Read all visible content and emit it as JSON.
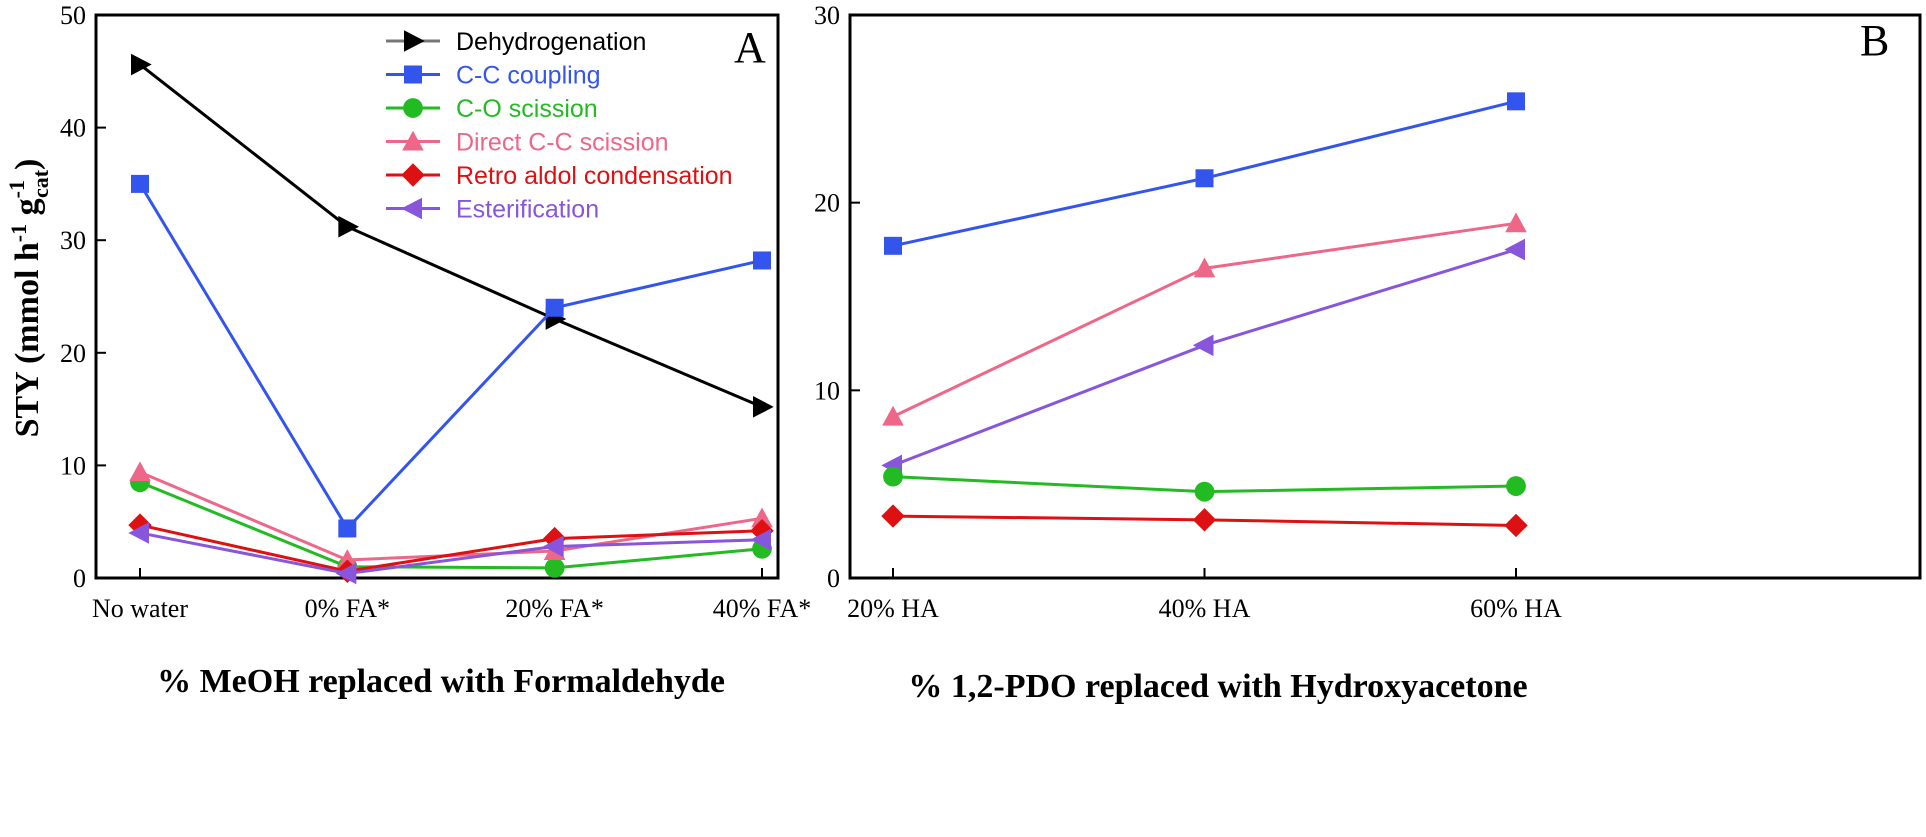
{
  "chart_data": [
    {
      "type": "line",
      "panel_label": "A",
      "categories": [
        "No water",
        "0% FA*",
        "20% FA*",
        "40% FA*"
      ],
      "xlabel": "% MeOH replaced with Formaldehyde",
      "ylabel": "STY (mmol h-1 gcat-1)",
      "ylabel_parts": {
        "main": "STY (mmol h",
        "sup1": "-1",
        "mid": " g",
        "sup2": "-1",
        "sub": "cat",
        "end": ")"
      },
      "ylim": [
        0,
        50
      ],
      "yticks": [
        "0",
        "10",
        "20",
        "30",
        "40",
        "50"
      ],
      "grid": false,
      "legend": "top-right",
      "series": [
        {
          "name": "Dehydrogenation",
          "color": "#000000",
          "line_color": "#000000",
          "legend_line_color": "#777777",
          "marker": "triangle-right",
          "values": [
            45.6,
            31.2,
            23.0,
            15.2
          ]
        },
        {
          "name": "C-C coupling",
          "color": "#3355ee",
          "line_color": "#3355ee",
          "marker": "square",
          "values": [
            35.0,
            4.4,
            24.0,
            28.2
          ]
        },
        {
          "name": "C-O scission",
          "color": "#22bb22",
          "line_color": "#22bb22",
          "marker": "circle",
          "values": [
            8.5,
            1.0,
            0.9,
            2.6
          ]
        },
        {
          "name": "Direct C-C scission",
          "color": "#ee6688",
          "line_color": "#ee6688",
          "marker": "triangle-up",
          "values": [
            9.4,
            1.6,
            2.4,
            5.3
          ]
        },
        {
          "name": "Retro aldol condensation",
          "color": "#dd1111",
          "line_color": "#dd1111",
          "marker": "diamond",
          "values": [
            4.7,
            0.6,
            3.5,
            4.2
          ]
        },
        {
          "name": "Esterification",
          "color": "#8855dd",
          "line_color": "#8855dd",
          "marker": "triangle-left",
          "values": [
            4.0,
            0.4,
            2.8,
            3.4
          ]
        }
      ]
    },
    {
      "type": "line",
      "panel_label": "B",
      "categories": [
        "20% HA",
        "40% HA",
        "60% HA"
      ],
      "xlabel": "% 1,2-PDO replaced with Hydroxyacetone",
      "ylim": [
        0,
        30
      ],
      "yticks": [
        "0",
        "10",
        "20",
        "30"
      ],
      "grid": false,
      "series": [
        {
          "name": "C-C coupling",
          "color": "#3355ee",
          "marker": "square",
          "values": [
            17.7,
            21.3,
            25.4
          ]
        },
        {
          "name": "Direct C-C scission",
          "color": "#ee6688",
          "marker": "triangle-up",
          "values": [
            8.6,
            16.5,
            18.9
          ]
        },
        {
          "name": "Esterification",
          "color": "#8855dd",
          "marker": "triangle-left",
          "values": [
            6.0,
            12.4,
            17.5
          ]
        },
        {
          "name": "C-O scission",
          "color": "#22bb22",
          "marker": "circle",
          "values": [
            5.4,
            4.6,
            4.9
          ]
        },
        {
          "name": "Retro aldol condensation",
          "color": "#dd1111",
          "marker": "diamond",
          "values": [
            3.3,
            3.1,
            2.8
          ]
        }
      ]
    }
  ]
}
